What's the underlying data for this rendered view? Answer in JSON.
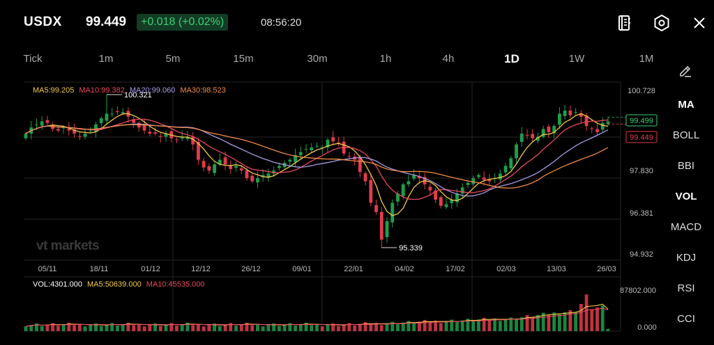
{
  "header": {
    "symbol": "USDX",
    "price": "99.449",
    "change": "+0.018 (+0.02%)",
    "time": "08:56:20",
    "icons": [
      "notebook-icon",
      "settings-hexagon-icon",
      "close-icon"
    ]
  },
  "tabs": [
    {
      "label": "Tick",
      "active": false
    },
    {
      "label": "1m",
      "active": false
    },
    {
      "label": "5m",
      "active": false
    },
    {
      "label": "15m",
      "active": false
    },
    {
      "label": "30m",
      "active": false
    },
    {
      "label": "1h",
      "active": false
    },
    {
      "label": "4h",
      "active": false
    },
    {
      "label": "1D",
      "active": true
    },
    {
      "label": "1W",
      "active": false
    },
    {
      "label": "1M",
      "active": false
    }
  ],
  "indicators": [
    {
      "label": "MA",
      "active": true
    },
    {
      "label": "BOLL",
      "active": false
    },
    {
      "label": "BBI",
      "active": false
    },
    {
      "label": "VOL",
      "active": true
    },
    {
      "label": "MACD",
      "active": false
    },
    {
      "label": "KDJ",
      "active": false
    },
    {
      "label": "RSI",
      "active": false
    },
    {
      "label": "CCI",
      "active": false
    }
  ],
  "ma_legend": [
    {
      "text": "MA5:99.205",
      "color": "#f2c94c"
    },
    {
      "text": "MA10:99.382",
      "color": "#e84a5f"
    },
    {
      "text": "MA20:99.060",
      "color": "#a99be6"
    },
    {
      "text": "MA30:98.523",
      "color": "#f08a45"
    }
  ],
  "vol_legend": [
    {
      "text": "VOL:4301.000",
      "color": "#ffffff"
    },
    {
      "text": "MA5:50639.000",
      "color": "#f2c94c"
    },
    {
      "text": "MA10:45535.000",
      "color": "#e84a5f"
    }
  ],
  "watermark": "vt markets",
  "colors": {
    "up": "#1e9e4a",
    "down": "#e23c4b",
    "grid": "#262626",
    "accent": "#3ccf74"
  },
  "chart_data": {
    "type": "candlestick",
    "price_axis_labels": [
      "100.728",
      "97.830",
      "96.381",
      "94.932"
    ],
    "ylim": [
      94.932,
      100.728
    ],
    "date_labels": [
      "05/11",
      "18/11",
      "01/12",
      "12/12",
      "26/12",
      "09/01",
      "22/01",
      "04/02",
      "17/02",
      "02/03",
      "13/03",
      "26/03"
    ],
    "high_annotation": "100.321",
    "low_annotation": "95.339",
    "current_price_tags": [
      {
        "text": "99.499",
        "kind": "up"
      },
      {
        "text": "99.449",
        "kind": "down"
      }
    ],
    "close": [
      99.05,
      99.25,
      99.35,
      99.45,
      99.4,
      99.2,
      99.15,
      99.25,
      99.15,
      99.05,
      98.95,
      99.05,
      99.15,
      99.35,
      99.55,
      99.7,
      99.7,
      99.75,
      99.75,
      99.6,
      99.4,
      99.25,
      99.15,
      99.05,
      99.05,
      98.95,
      99.05,
      98.9,
      98.85,
      98.95,
      98.95,
      98.7,
      98.2,
      97.95,
      97.85,
      98.05,
      98.2,
      98.05,
      97.9,
      98.0,
      97.85,
      97.6,
      97.5,
      97.6,
      97.7,
      97.75,
      97.85,
      98.0,
      98.1,
      98.2,
      98.35,
      98.45,
      98.55,
      98.6,
      98.65,
      98.6,
      98.85,
      98.8,
      98.75,
      98.4,
      98.3,
      98.2,
      97.8,
      97.5,
      96.8,
      96.5,
      95.6,
      96.2,
      96.8,
      97.1,
      97.4,
      97.5,
      97.7,
      97.6,
      97.4,
      97.2,
      96.9,
      96.7,
      96.75,
      96.9,
      97.1,
      97.3,
      97.45,
      97.6,
      97.7,
      97.55,
      97.5,
      97.6,
      97.75,
      98.0,
      98.25,
      98.7,
      99.05,
      99.0,
      98.9,
      98.95,
      99.2,
      99.1,
      99.3,
      99.7,
      99.8,
      99.65,
      99.75,
      99.6,
      99.3,
      99.2,
      99.1,
      99.4,
      99.449
    ],
    "volume_max": "87802.000",
    "volume_min": "0.000",
    "volume_last": 4301
  }
}
